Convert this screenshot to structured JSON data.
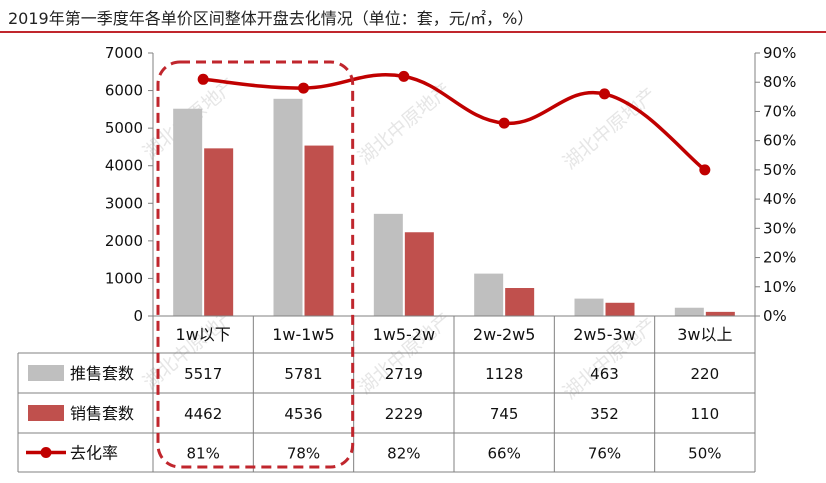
{
  "title": "2019年第一季度年各单价区间整体开盘去化情况（单位：套，元/㎡，%）",
  "watermark": "湖北中原地产",
  "colors": {
    "supply": "#bfbfbf",
    "sales": "#c0504d",
    "rate": "#c00000",
    "accent": "#c0262d"
  },
  "chart_data": {
    "type": "bar",
    "categories": [
      "1w以下",
      "1w-1w5",
      "1w5-2w",
      "2w-2w5",
      "2w5-3w",
      "3w以上"
    ],
    "series": [
      {
        "name": "推售套数",
        "type": "bar",
        "axis": "left",
        "values": [
          5517,
          5781,
          2719,
          1128,
          463,
          220
        ]
      },
      {
        "name": "销售套数",
        "type": "bar",
        "axis": "left",
        "values": [
          4462,
          4536,
          2229,
          745,
          352,
          110
        ]
      },
      {
        "name": "去化率",
        "type": "line",
        "axis": "right",
        "values": [
          81,
          78,
          82,
          66,
          76,
          50
        ]
      }
    ],
    "y_left": {
      "ylim": [
        0,
        7000
      ],
      "ticks": [
        "0",
        "1000",
        "2000",
        "3000",
        "4000",
        "5000",
        "6000",
        "7000"
      ]
    },
    "y_right": {
      "ylim": [
        0,
        90
      ],
      "ticks": [
        "0%",
        "10%",
        "20%",
        "30%",
        "40%",
        "50%",
        "60%",
        "70%",
        "80%",
        "90%"
      ]
    },
    "table": {
      "rows": [
        {
          "label": "推售套数",
          "cells": [
            "5517",
            "5781",
            "2719",
            "1128",
            "463",
            "220"
          ]
        },
        {
          "label": "销售套数",
          "cells": [
            "4462",
            "4536",
            "2229",
            "745",
            "352",
            "110"
          ]
        },
        {
          "label": "去化率",
          "cells": [
            "81%",
            "78%",
            "82%",
            "66%",
            "76%",
            "50%"
          ]
        }
      ]
    },
    "highlight": {
      "categories": [
        "1w以下",
        "1w-1w5"
      ],
      "style": "dashed-rounded-box"
    },
    "legend": "data-table",
    "grid": false
  }
}
